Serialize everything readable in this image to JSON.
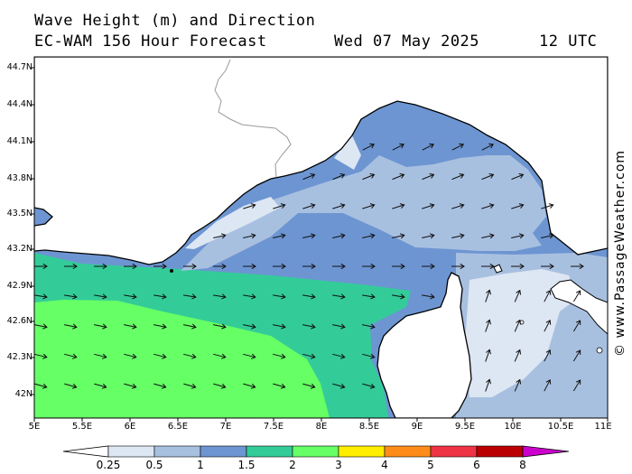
{
  "title": {
    "line1": "Wave Height (m) and Direction",
    "line2": "EC-WAM 156 Hour Forecast",
    "date": "Wed 07 May 2025",
    "time": "12 UTC"
  },
  "watermark": "© www.PassageWeather.com",
  "axes": {
    "lat_labels": [
      "44.7N",
      "44.4N",
      "44.1N",
      "43.8N",
      "43.5N",
      "43.2N",
      "42.9N",
      "42.6N",
      "42.3N",
      "42N"
    ],
    "lon_labels": [
      "5E",
      "5.5E",
      "6E",
      "6.5E",
      "7E",
      "7.5E",
      "8E",
      "8.5E",
      "9E",
      "9.5E",
      "10E",
      "10.5E",
      "11E"
    ]
  },
  "colorbar": {
    "labels": [
      "0.25",
      "0.5",
      "1",
      "1.5",
      "2",
      "3",
      "4",
      "5",
      "6",
      "8"
    ],
    "colors": [
      "#ffffff",
      "#dde6f3",
      "#a8c0e0",
      "#6d95d2",
      "#33cc99",
      "#66ff66",
      "#ffee00",
      "#ff8c1a",
      "#ee3344",
      "#bb0000",
      "#cc00cc"
    ]
  },
  "colors": {
    "land": "#ffffff",
    "coast": "#000000",
    "border": "#999999",
    "band_lt": "#dde6f3",
    "band_md": "#a8c0e0",
    "band_dk": "#6d95d2",
    "teal": "#33cc99",
    "green": "#66ff66"
  }
}
